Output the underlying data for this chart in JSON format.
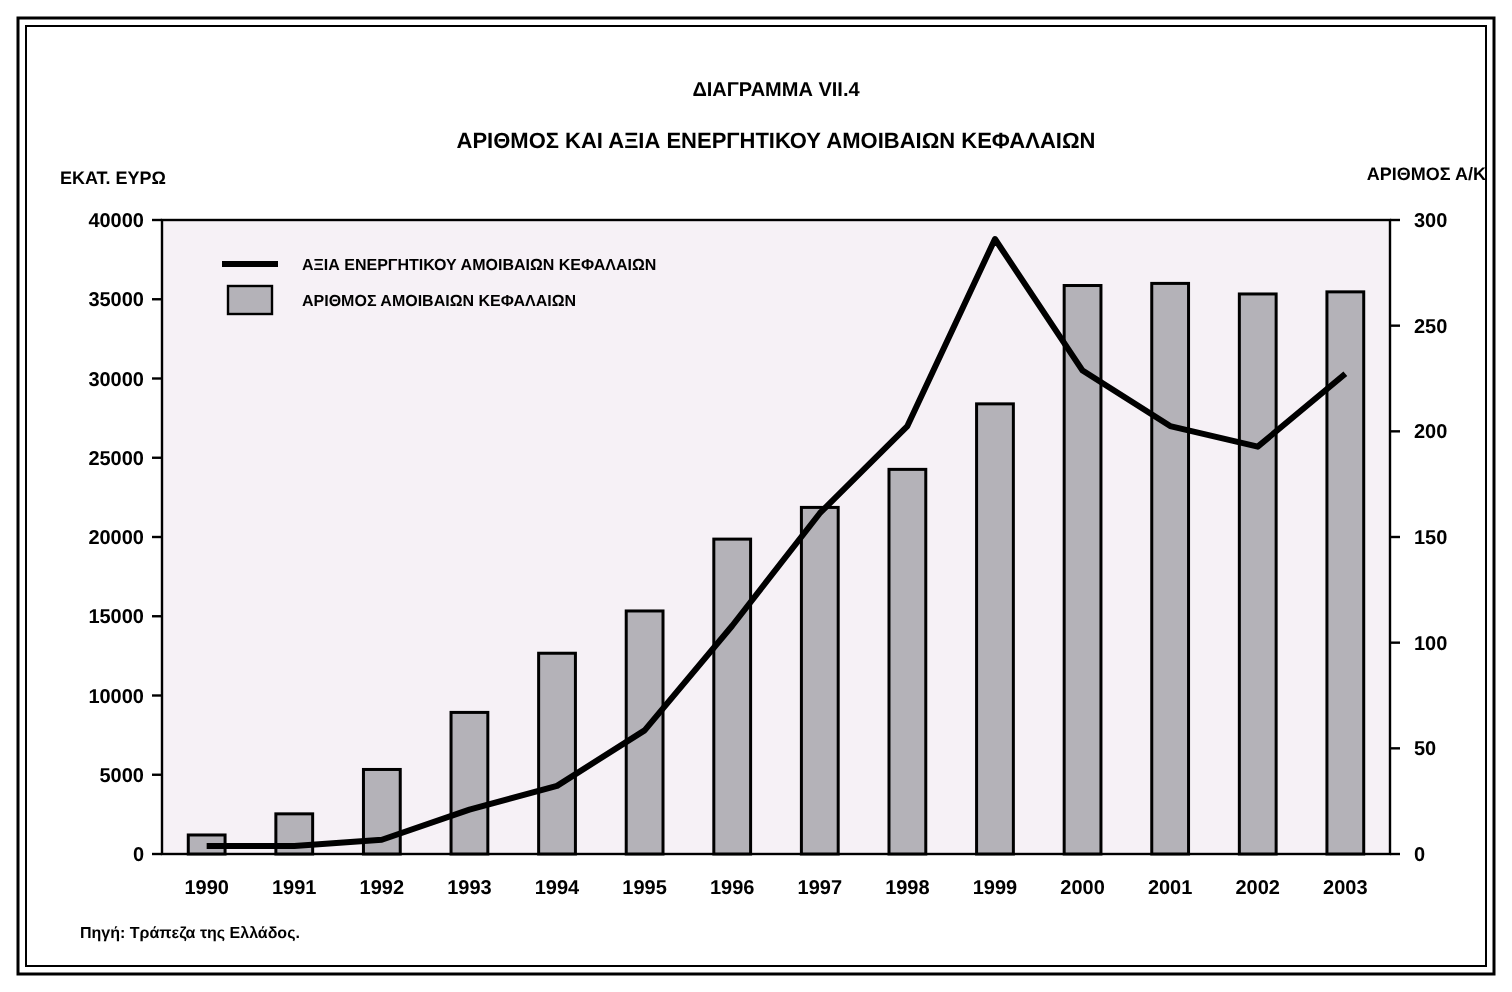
{
  "chart_data": {
    "type": "bar",
    "title": "ΔΙΑΓΡΑΜΜΑ VII.4",
    "subtitle": "ΑΡΙΘΜΟΣ ΚΑΙ ΑΞΙΑ ΕΝΕΡΓΗΤΙΚΟΥ ΑΜΟΙΒΑΙΩΝ ΚΕΦΑΛΑΙΩΝ",
    "ylabel": "ΕΚΑΤ. ΕΥΡΩ",
    "y2label": "ΑΡΙΘΜΟΣ Α/Κ",
    "annotations": [
      "Πηγή: Τράπεζα της Ελλάδος."
    ],
    "categories": [
      "1990",
      "1991",
      "1992",
      "1993",
      "1994",
      "1995",
      "1996",
      "1997",
      "1998",
      "1999",
      "2000",
      "2001",
      "2002",
      "2003"
    ],
    "series": [
      {
        "name": "ΑΞΙΑ ΕΝΕΡΓΗΤΙΚΟΥ ΑΜΟΙΒΑΙΩΝ ΚΕΦΑΛΑΙΩΝ",
        "type": "line",
        "color": "#000000",
        "values": [
          500,
          500,
          900,
          2800,
          4300,
          7800,
          14400,
          21500,
          27000,
          38800,
          30500,
          27000,
          25700,
          30300
        ]
      },
      {
        "name": "ΑΡΙΘΜΟΣ ΑΜΟΙΒΑΙΩΝ ΚΕΦΑΛΑΙΩΝ",
        "axis": "y2",
        "color": "#b4b2b8",
        "values": [
          9,
          19,
          40,
          67,
          95,
          115,
          149,
          164,
          182,
          213,
          269,
          270,
          265,
          266
        ]
      }
    ],
    "ylim": [
      0,
      40000
    ],
    "yticks": [
      0,
      5000,
      10000,
      15000,
      20000,
      25000,
      30000,
      35000,
      40000
    ],
    "y2lim": [
      0,
      300
    ],
    "y2ticks": [
      0,
      50,
      100,
      150,
      200,
      250,
      300
    ],
    "grid": false,
    "legend": "top left",
    "marker": "none",
    "line_style": "solid"
  }
}
